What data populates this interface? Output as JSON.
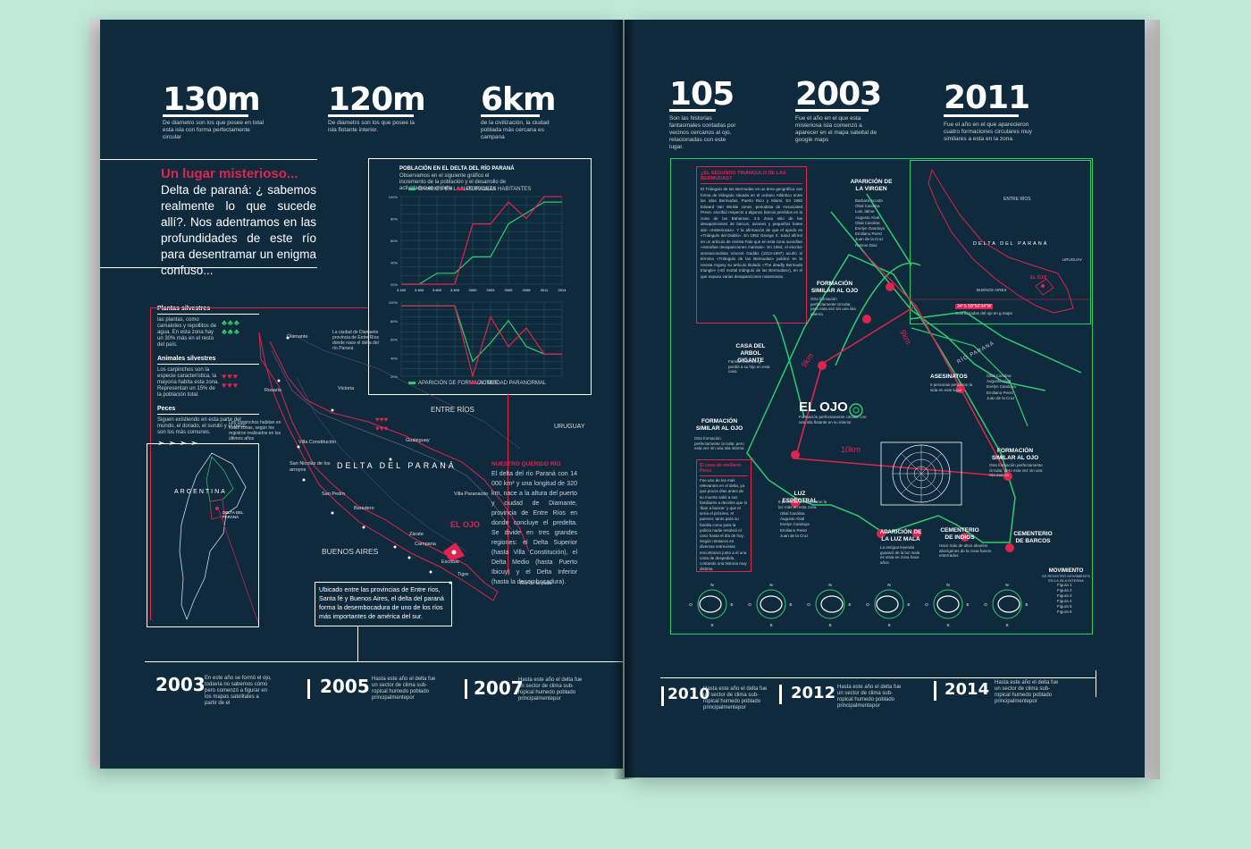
{
  "left_stats": [
    {
      "num": "130m",
      "text": "De diametro son los que posee en total esta isla con forma perfectamente circular"
    },
    {
      "num": "120m",
      "text": "De diametro son los que posee la isla flotante interior."
    },
    {
      "num": "6km",
      "text": "de la civilización, la ciudad poblada más cercana es campana"
    }
  ],
  "intro": {
    "title": "Un lugar misterioso...",
    "body": "Delta de paraná: ¿ sabemos realmente lo que sucede allí?. Nos adentramos en las profundidades de este río para desentramar un enigma confuso..."
  },
  "population_chart": {
    "title": "POBLACIÓN EN EL DELTA DEL RÍO PARANÁ",
    "legend_top": [
      "CAMBIOS EN LA NATURALEZA",
      "PERSONAS HABITANTES"
    ],
    "legend_bottom": [
      "APARICIÓN DE FORMACIONES",
      "ACTIVIDAD PARANORMAL"
    ]
  },
  "chart_data": [
    {
      "type": "line",
      "title": "POBLACIÓN EN EL DELTA DEL RÍO PARANÁ",
      "x": [
        "3.150",
        "3.450",
        "3.600",
        "3.400",
        "2000",
        "2003",
        "2005",
        "2008",
        "2011",
        "2014"
      ],
      "y_ticks": [
        "100%",
        "80%",
        "60%",
        "40%",
        "20%"
      ],
      "ylim": [
        20,
        100
      ],
      "series": [
        {
          "name": "CAMBIOS EN LA NATURALEZA",
          "color": "#2ecc71",
          "values": [
            20,
            20,
            30,
            30,
            45,
            45,
            75,
            85,
            95,
            95
          ]
        },
        {
          "name": "PERSONAS HABITANTES",
          "color": "#e0234f",
          "values": [
            20,
            20,
            20,
            20,
            75,
            75,
            95,
            80,
            100,
            100
          ]
        }
      ]
    },
    {
      "type": "line",
      "y_ticks": [
        "100%",
        "80%",
        "60%",
        "40%",
        "20%"
      ],
      "ylim": [
        0,
        100
      ],
      "series": [
        {
          "name": "APARICIÓN DE FORMACIONES",
          "color": "#2ecc71",
          "values": [
            95,
            95,
            95,
            95,
            20,
            45,
            75,
            40,
            30,
            30
          ]
        },
        {
          "name": "ACTIVIDAD PARANORMAL",
          "color": "#e0234f",
          "values": [
            95,
            95,
            95,
            95,
            0,
            80,
            40,
            65,
            30,
            30
          ]
        }
      ]
    }
  ],
  "species": {
    "plants_title": "Plantas silvestres",
    "plants_text": "las plantas, como camalotes y repollitos de agua. En esta zona hay un 30% más en el resto del país.",
    "animals_title": "Animales silvestres",
    "animals_text": "Los carpinchos son la especie característica, la mayoría habita esta zona. Representan un 15% de la población total.",
    "fish_title": "Peces",
    "fish_text": "Siguen existiendo en esta parte del mundo, el dorado, el surubí y el pacú son los más comunes."
  },
  "delta_map": {
    "entre_rios": "ENTRE RÍOS",
    "uruguay": "URUGUAY",
    "delta": "DELTA DEL PARANÁ",
    "buenos_aires": "BUENOS AIRES",
    "el_ojo": "EL OJO",
    "rio_plata": "Río de la plata",
    "villa_paranacito": "Villa Paranacito",
    "cities": [
      "Diamante",
      "Rosario",
      "Victoria",
      "Villa Constitución",
      "Gualeguay",
      "San Nicolás de los arroyos",
      "San Pedro",
      "Baradero",
      "Zárate",
      "Campana",
      "Escobar",
      "Tigre"
    ],
    "argentina": "ARGENTINA",
    "delta_small": "DELTA DEL PARANÁ",
    "caption": "Ubicado entre las provincias de Entre ríos, Santa fé y Buenos Aires, el delta del paraná forma la desembocadura de uno de los ríos más importantes de américa del sur."
  },
  "nuestro_rio": {
    "title": "NUESTRO QUERIDO RÍO",
    "body": "El delta del río Paraná con 14 000 km² y una longitud de 320 km, nace a la altura del puerto y ciudad de Diamante, provincia de Entre Ríos en donde concluye el predelta. Se divide en tres grandes regiones: el Delta Superior (hasta Villa Constitución), el Delta Medio (hasta Puerto Ibicuy) y el Delta Inferior (hasta la desembocadura)."
  },
  "timeline_left": [
    {
      "year": "2003",
      "text": "En este año se formó el ojo, todavía no sabemos cómo pero comenzó a figurar en los mapas satelitales a partir de el"
    },
    {
      "year": "2005",
      "text": "Hasta este año el delta fue un sector de clima sub-ropical humedo poblado principalmentepor"
    },
    {
      "year": "2007",
      "text": "Hasta este año el delta fue un sector de clima sub-ropical humedo poblado principalmentepor"
    }
  ],
  "right_stats": [
    {
      "num": "105",
      "text": "Son las historias fantasmales contadas por vecinos cercanos al ojo, relacionadas con este lugar."
    },
    {
      "num": "2003",
      "text": "Fue el año en el que esta misteriosa isla comenzó a aparecer en el mapa sateital de google maps"
    },
    {
      "num": "2011",
      "text": "Fue el año en el que aparecieron cuatro formaciones circulares muy similares a esta en la zona."
    }
  ],
  "bermudas": {
    "title": "¿EL SEGUNDO TRIÁNGULO DE LAS BERMUDAS?",
    "body": "El Triángulo de las Bermudas es un área geográfica con forma de triángulo situada en el océano Atlántico entre las islas Bermudas, Puerto Rico y Miami. En 1950 Edward Van Winkle Jones -periodista de Associated Press- escribió respecto a algunos barcos perdidos en la zona de las Bahamas. 2.5 Zona sitio de las desapariciones de barcos, aviones y pequeños botes aún «misteriosas». Y la afirmación de que el apodo es «Triángulo del Diablo». En 1952 George X. Sand afirmó en un artículo de revista Fate que en esta zona sucedían «extrañas desapariciones marinas». En 1964, el escritor sensacionalista Vincent Gaddis (1913-1997) acuñó el término «Triángulo de las Bermudas» publicó en la revista Argosy su artículo titulado «The deadly Bermuda triangle» («El mortal triángulo de las Bermudas»), en el que expuso varias desapariciones misteriosas."
  },
  "emiliano": {
    "title": "El caso de emiliano Pérez",
    "body": "Fue uno de los más relevantes en el delta, ya que pocos días antes de su muerte salió a sus familiares a decirles que lo 'iban a buscar' y que el sería el próximo. Al parecer, tanto para su familia como para la policía nadie resolvió el caso hasta el día de hoy. Según relataron en diversas entrevistas encontraron junto a el una carta de despedida, contando una historia muy distinta."
  },
  "el_ojo_map": {
    "title": "EL OJO",
    "subtitle": "Formación perfectamente circular con una isla flotante en su interior",
    "km9_a": "9km",
    "km9_b": "9km",
    "km10": "10km",
    "rio_parana": "RÍO PARANÁ",
    "places": [
      {
        "name": "APARICIÓN DE LA VIRGEN",
        "desc": ""
      },
      {
        "name": "FORMACIÓN SIMILAR AL OJO",
        "desc": "Otra formación perfectamente circular, pero esta vez sin una isla interna"
      },
      {
        "name": "CASA DEL ARBOL GIGANTE",
        "desc": "Familia Eisenberg, perdió a su hijo en esta casa"
      },
      {
        "name": "ASESINATOS",
        "desc": "5 personas perdieron la vida en este lugar"
      },
      {
        "name": "FORMACIÓN SIMILAR AL OJO",
        "desc": "Otra formación perfectamente circular, pero esta vez sin una isla interna"
      },
      {
        "name": "FORMACIÓN SIMILAR AL OJO",
        "desc": "Otra formación perfectamente circular, pero esta vez sin una isla interna"
      },
      {
        "name": "LUZ ESPECTRAL",
        "desc": "5 personas presenciaron la luz más en esta zona"
      },
      {
        "name": "APARICIÓN DE LA LUZ MALA",
        "desc": "La antigua leyenda guaraní de la luz mala es vista en zona hace años"
      },
      {
        "name": "CEMENTERIO DE INDIOS",
        "desc": "Hace más de altos abuelos aborígenes de la zona fueron enterrados"
      },
      {
        "name": "CEMENTERIO DE BARCOS",
        "desc": ""
      }
    ],
    "virgen_list": [
      "Barbara Acosta",
      "Obal Carolina",
      "Luis Jalme",
      "Augusto Alval",
      "Obal Carolina",
      "Evelyn Gandoya",
      "Emiliano Perez",
      "Juan de la Cruz",
      "Ramon Diaz"
    ],
    "asesinatos_list": [
      "Obal Carolina",
      "Augusto Alval",
      "Evelyn Candoya",
      "Emiliano Perez",
      "Juan de la Cruz"
    ],
    "luz_list": [
      "Obal Carolina",
      "Augusto Alval",
      "Evelyn Candoya",
      "Emiliano Perez",
      "Juan de la Cruz"
    ]
  },
  "mini_map": {
    "entre_rios": "ENTRE RÍOS",
    "delta": "DELTA DEL PARANÁ",
    "uruguay": "URUGUAY",
    "buenos_aires": "BUENOS AIRES",
    "el_ojo": "EL OJO",
    "coords_label": "34°S 58°50′34″W",
    "coords_text": "Coordenadas del ojo en g.maps"
  },
  "movimiento": {
    "title": "MOVIMIENTO",
    "subtitle": "SE REGISTRÓ MOVIMIENTO EN LA ISLA INTERNA",
    "figures": [
      "Figura 1",
      "Figura 2",
      "Figura 3",
      "Figura 4",
      "Figura 5",
      "Figura 6"
    ],
    "compass": [
      "N",
      "E",
      "S",
      "O"
    ]
  },
  "timeline_right": [
    {
      "year": "2010",
      "text": "Hasta este año el delta fue un sector de clima sub-ropical humedo poblado principalmentepor"
    },
    {
      "year": "2012",
      "text": "Hasta este año el delta fue un sector de clima sub-ropical humedo poblado principalmentepor"
    },
    {
      "year": "2014",
      "text": "Hasta este año el delta fue un sector de clima sub-ropical humedo poblado principalmentepor"
    }
  ],
  "colors": {
    "page": "#0f2a3d",
    "accent_pink": "#e0234f",
    "accent_green": "#2ecc71",
    "background": "#bfe9d8"
  }
}
